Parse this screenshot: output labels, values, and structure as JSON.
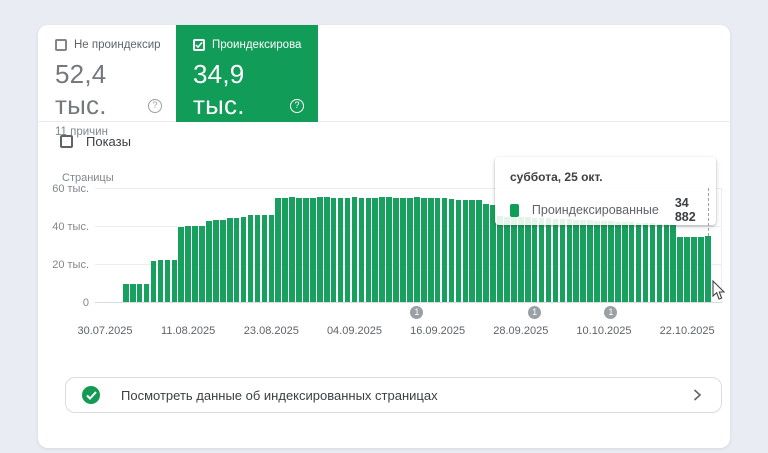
{
  "cards": {
    "not_indexed": {
      "label": "Не проиндексир…",
      "value": "52,4 тыс.",
      "sub": "11 причин",
      "checked": false
    },
    "indexed": {
      "label": "Проиндексирова…",
      "value": "34,9 тыс.",
      "checked": true
    }
  },
  "impressions_toggle": {
    "label": "Показы",
    "checked": false
  },
  "icons": {
    "help_glyph": "?"
  },
  "tooltip": {
    "title": "суббота, 25 окт.",
    "series": "Проиндексированные",
    "value": "34 882"
  },
  "action_row": {
    "label": "Посмотреть данные об индексированных страницах"
  },
  "chart_data": {
    "type": "bar",
    "title": "Страницы",
    "ylabel": "Страницы",
    "xlabel": "",
    "grid": true,
    "legend_position": "tooltip",
    "ylim": [
      0,
      60000
    ],
    "y_ticks": [
      {
        "label": "60 тыс.",
        "value": 60000
      },
      {
        "label": "40 тыс.",
        "value": 40000
      },
      {
        "label": "20 тыс.",
        "value": 20000
      },
      {
        "label": "0",
        "value": 0
      }
    ],
    "x_ticks": [
      {
        "label": "30.07.2025",
        "day_offset": 0
      },
      {
        "label": "11.08.2025",
        "day_offset": 12
      },
      {
        "label": "23.08.2025",
        "day_offset": 24
      },
      {
        "label": "04.09.2025",
        "day_offset": 36
      },
      {
        "label": "16.09.2025",
        "day_offset": 48
      },
      {
        "label": "28.09.2025",
        "day_offset": 60
      },
      {
        "label": "10.10.2025",
        "day_offset": 72
      },
      {
        "label": "22.10.2025",
        "day_offset": 84
      }
    ],
    "annotations": [
      {
        "label": "1",
        "day_offset": 45
      },
      {
        "label": "1",
        "day_offset": 62
      },
      {
        "label": "1",
        "day_offset": 73
      }
    ],
    "hovered_day_offset": 87,
    "hovered_value": 34882,
    "series": [
      {
        "name": "Проиндексированные",
        "color": "#18a05e",
        "start_date": "02.08.2025",
        "end_date": "25.10.2025",
        "start_day_offset": 3,
        "values": [
          9300,
          9400,
          9600,
          9700,
          21800,
          21900,
          22000,
          22100,
          39700,
          39800,
          39900,
          40000,
          42900,
          43000,
          43100,
          44200,
          44400,
          44500,
          45600,
          45800,
          45900,
          46000,
          54800,
          55000,
          55100,
          55000,
          54900,
          55000,
          55200,
          55100,
          55000,
          54900,
          55000,
          55100,
          55000,
          54800,
          55000,
          55100,
          55200,
          55000,
          54900,
          55000,
          55100,
          55000,
          54900,
          54800,
          54700,
          54000,
          53900,
          53800,
          53700,
          53600,
          51500,
          51200,
          45200,
          45000,
          44800,
          44700,
          44500,
          44300,
          44200,
          44000,
          43800,
          43700,
          43500,
          43300,
          43200,
          43000,
          42800,
          42700,
          42500,
          42300,
          42200,
          42000,
          41800,
          41600,
          41400,
          41200,
          40800,
          40400,
          34000,
          34100,
          34100,
          34200,
          34882
        ]
      }
    ]
  }
}
